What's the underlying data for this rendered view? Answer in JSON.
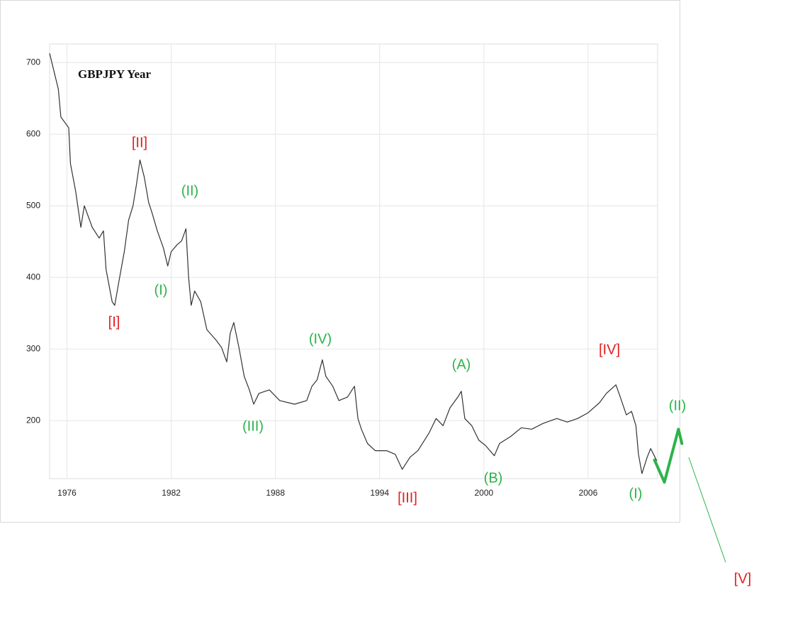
{
  "chart_data": {
    "type": "line",
    "title": "GBPJPY Year",
    "color": "#333333",
    "xlim": [
      1975,
      2010
    ],
    "ylim": [
      119,
      726
    ],
    "xticks": [
      1976,
      1982,
      1988,
      1994,
      2000,
      2006
    ],
    "yticks": [
      200,
      300,
      400,
      500,
      600,
      700
    ],
    "grid": true,
    "x": [
      1975.0,
      1975.2,
      1975.5,
      1975.65,
      1976.1,
      1976.2,
      1976.5,
      1976.8,
      1977.0,
      1977.45,
      1977.85,
      1978.1,
      1978.25,
      1978.6,
      1978.75,
      1979.0,
      1979.3,
      1979.55,
      1979.8,
      1980.0,
      1980.2,
      1980.45,
      1980.7,
      1980.9,
      1981.2,
      1981.55,
      1981.8,
      1982.0,
      1982.35,
      1982.6,
      1982.85,
      1983.0,
      1983.15,
      1983.35,
      1983.7,
      1984.05,
      1984.6,
      1984.9,
      1985.2,
      1985.4,
      1985.6,
      1985.9,
      1986.2,
      1986.5,
      1986.75,
      1987.05,
      1987.65,
      1988.25,
      1989.1,
      1989.8,
      1990.1,
      1990.4,
      1990.7,
      1990.9,
      1991.3,
      1991.65,
      1992.15,
      1992.55,
      1992.75,
      1992.95,
      1993.3,
      1993.75,
      1994.4,
      1994.9,
      1995.3,
      1995.75,
      1996.2,
      1996.85,
      1997.25,
      1997.65,
      1998.05,
      1998.5,
      1998.7,
      1998.9,
      1999.3,
      1999.7,
      2000.1,
      2000.6,
      2000.9,
      2001.55,
      2002.15,
      2002.75,
      2003.4,
      2004.2,
      2004.8,
      2005.4,
      2006.0,
      2006.65,
      2007.05,
      2007.6,
      2007.85,
      2008.2,
      2008.5,
      2008.75,
      2008.9,
      2009.1,
      2009.4,
      2009.6,
      2009.95
    ],
    "values": [
      713,
      693,
      663,
      624,
      609,
      559,
      520,
      470,
      500,
      470,
      455,
      465,
      411,
      366,
      361,
      396,
      436,
      480,
      500,
      530,
      564,
      540,
      505,
      490,
      465,
      441,
      416,
      436,
      446,
      451,
      468,
      401,
      361,
      381,
      366,
      327,
      312,
      302,
      282,
      322,
      337,
      302,
      262,
      243,
      223,
      238,
      243,
      228,
      223,
      228,
      248,
      257,
      285,
      262,
      248,
      228,
      233,
      248,
      203,
      188,
      168,
      158,
      158,
      153,
      132,
      149,
      158,
      183,
      203,
      193,
      218,
      233,
      241,
      203,
      193,
      173,
      165,
      151,
      168,
      178,
      190,
      188,
      196,
      203,
      198,
      203,
      211,
      225,
      238,
      250,
      233,
      208,
      213,
      193,
      153,
      126,
      149,
      161,
      144
    ],
    "projection": {
      "color": "#2db34a",
      "x": [
        2009.82,
        2010.39,
        2011.2,
        2011.4
      ],
      "values": [
        145,
        114,
        188,
        168
      ]
    },
    "annotations": [
      {
        "text": "[II]",
        "color": "#e02020"
      },
      {
        "text": "(II)",
        "color": "#2db34a"
      },
      {
        "text": "(I)",
        "color": "#2db34a"
      },
      {
        "text": "[I]",
        "color": "#e02020"
      },
      {
        "text": "(IV)",
        "color": "#2db34a"
      },
      {
        "text": "(III)",
        "color": "#2db34a"
      },
      {
        "text": "[III]",
        "color": "#e02020"
      },
      {
        "text": "(A)",
        "color": "#2db34a"
      },
      {
        "text": "(B)",
        "color": "#2db34a"
      },
      {
        "text": "[IV]",
        "color": "#e02020"
      },
      {
        "text": "(II)",
        "color": "#2db34a"
      },
      {
        "text": "(I)",
        "color": "#2db34a"
      },
      {
        "text": "[V]",
        "color": "#e02020"
      }
    ]
  }
}
